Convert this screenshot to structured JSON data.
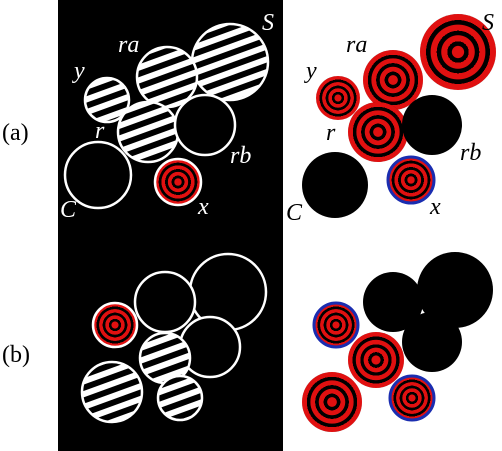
{
  "panels": [
    "(a)",
    "(b)"
  ],
  "labels": {
    "S_left": "S",
    "ra_left": "ra",
    "y_left": "y",
    "r_left": "r",
    "rb_left": "rb",
    "C_left": "C",
    "x_left": "x",
    "S_right": "S",
    "ra_right": "ra",
    "y_right": "y",
    "r_right": "r",
    "rb_right": "rb",
    "C_right": "C",
    "x_right": "x"
  }
}
